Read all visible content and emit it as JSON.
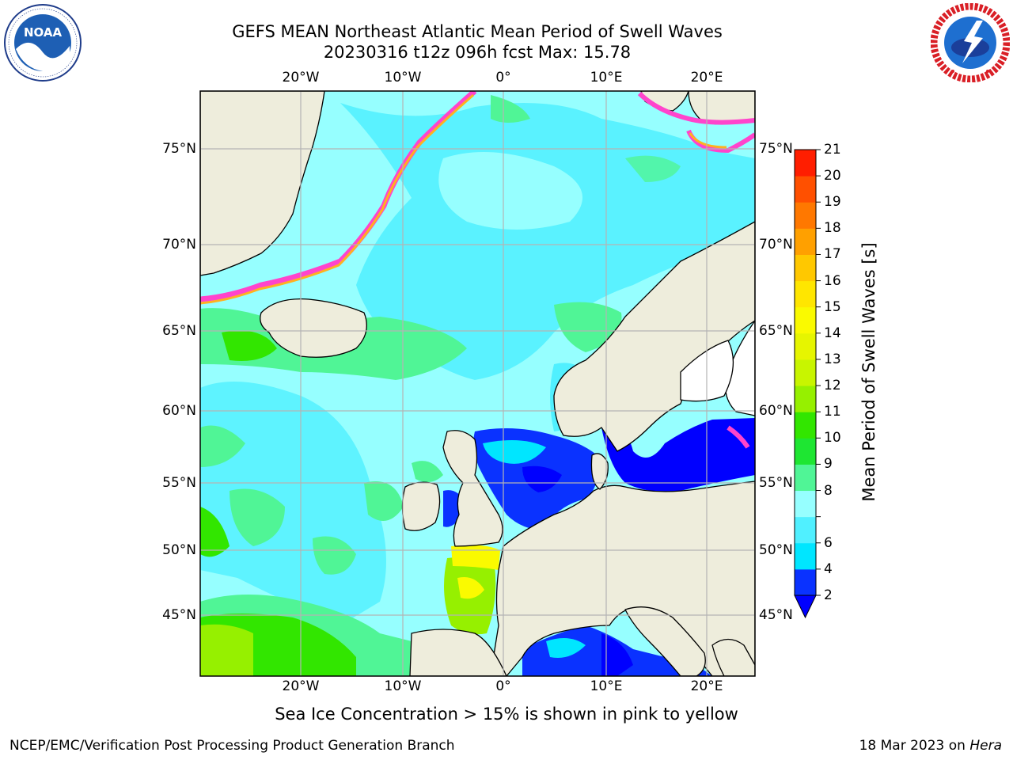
{
  "title": {
    "line1": "GEFS MEAN Northeast Atlantic Mean Period of Swell Waves",
    "line2": "20230316 t12z 096h fcst   Max: 15.78"
  },
  "logos": {
    "noaa": {
      "text": "NOAA",
      "ring_text": "NATIONAL OCEANIC AND ATMOSPHERIC ADMINISTRATION · U.S. DEPARTMENT OF COMMERCE"
    },
    "nws": {
      "ring_text": "NATIONAL WEATHER SERVICE"
    }
  },
  "axes": {
    "lon_ticks": [
      "20°W",
      "10°W",
      "0°",
      "10°E",
      "20°E"
    ],
    "lat_ticks": [
      "75°N",
      "70°N",
      "65°N",
      "60°N",
      "55°N",
      "50°N",
      "45°N"
    ]
  },
  "colorbar": {
    "label": "Mean Period of Swell Waves [s]",
    "levels": [
      "2",
      "4",
      "6",
      "7",
      "8",
      "9",
      "10",
      "11",
      "12",
      "13",
      "14",
      "15",
      "16",
      "17",
      "18",
      "19",
      "20",
      "21"
    ],
    "tick_labels": [
      "2",
      "4",
      "6",
      "8",
      "9",
      "10",
      "11",
      "12",
      "13",
      "14",
      "15",
      "16",
      "17",
      "18",
      "19",
      "20",
      "21"
    ],
    "colors": [
      "#0a32ff",
      "#00e6ff",
      "#50f0ff",
      "#96ffff",
      "#50f596",
      "#1ee632",
      "#32e600",
      "#96f000",
      "#c8f500",
      "#e6f500",
      "#fafa00",
      "#ffe600",
      "#ffc800",
      "#ffa000",
      "#ff7800",
      "#ff5000",
      "#ff1e00"
    ],
    "under_color": "#0000ff"
  },
  "note": "Sea Ice Concentration > 15% is shown in pink to yellow",
  "footer": {
    "credit": "NCEP/EMC/Verification Post Processing Product Generation Branch",
    "date": "18 Mar 2023 on ",
    "machine": "Hera"
  },
  "colors": {
    "land": "#eeeddc",
    "ice_edge": "#ff44cc",
    "ice_inner": "#ffb020",
    "gridline": "#b4b4b4"
  }
}
